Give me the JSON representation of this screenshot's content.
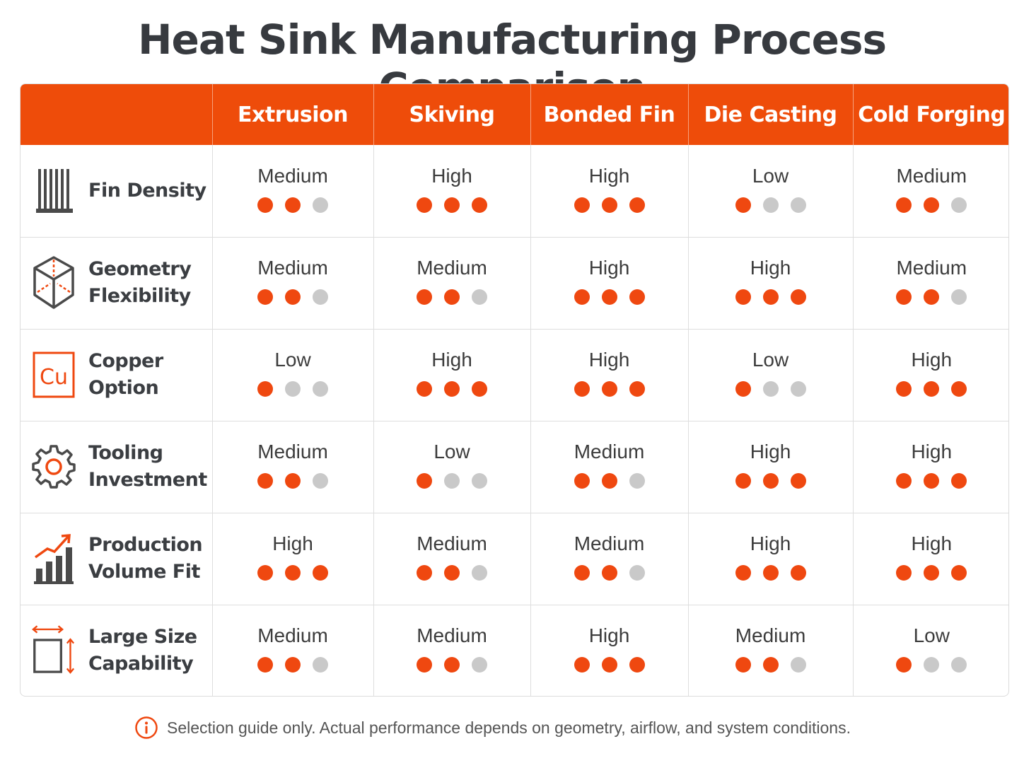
{
  "title": "Heat Sink Manufacturing Process Comparison",
  "colors": {
    "accent": "#ee4c0a",
    "dot_on": "#ef4810",
    "dot_off": "#c9c9c9",
    "icon": "#4a4a4a"
  },
  "chart_data": {
    "type": "table",
    "columns": [
      "Extrusion",
      "Skiving",
      "Bonded Fin",
      "Die Casting",
      "Cold Forging"
    ],
    "scale_max": 3,
    "rows": [
      {
        "label": "Fin Density",
        "icon": "fins-icon",
        "levels": [
          "Medium",
          "High",
          "High",
          "Low",
          "Medium"
        ],
        "dots": [
          2,
          3,
          3,
          1,
          2
        ]
      },
      {
        "label": "Geometry Flexibility",
        "icon": "cube-icon",
        "levels": [
          "Medium",
          "Medium",
          "High",
          "High",
          "Medium"
        ],
        "dots": [
          2,
          2,
          3,
          3,
          2
        ]
      },
      {
        "label": "Copper Option",
        "icon": "copper-icon",
        "icon_text": "Cu",
        "levels": [
          "Low",
          "High",
          "High",
          "Low",
          "High"
        ],
        "dots": [
          1,
          3,
          3,
          1,
          3
        ]
      },
      {
        "label": "Tooling Investment",
        "icon": "gear-icon",
        "levels": [
          "Medium",
          "Low",
          "Medium",
          "High",
          "High"
        ],
        "dots": [
          2,
          1,
          2,
          3,
          3
        ]
      },
      {
        "label": "Production Volume Fit",
        "icon": "bar-chart-icon",
        "levels": [
          "High",
          "Medium",
          "Medium",
          "High",
          "High"
        ],
        "dots": [
          3,
          2,
          2,
          3,
          3
        ]
      },
      {
        "label": "Large Size Capability",
        "icon": "size-icon",
        "levels": [
          "Medium",
          "Medium",
          "High",
          "Medium",
          "Low"
        ],
        "dots": [
          2,
          2,
          3,
          2,
          1
        ]
      }
    ]
  },
  "footnote": "Selection guide only. Actual performance depends on geometry, airflow, and system conditions."
}
